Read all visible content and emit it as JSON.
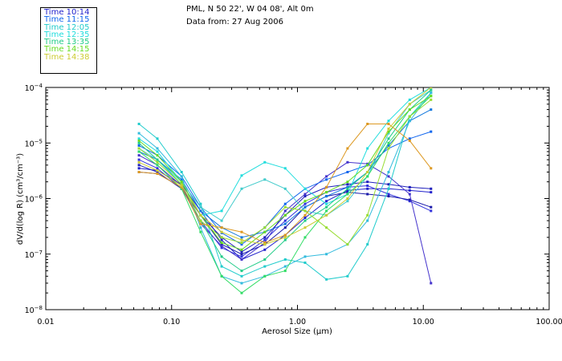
{
  "header": {
    "location": "PML, N 50 22', W 04 08', Alt 0m",
    "date_line": "Data from: 27 Aug 2006"
  },
  "chart_data": {
    "type": "line",
    "xlabel": "Aerosol Size (μm)",
    "ylabel": "dV/d(log R) (cm³/cm⁻³)",
    "x_scale": "log",
    "y_scale": "log",
    "xlim": [
      0.01,
      100
    ],
    "ylim": [
      1e-08,
      0.0001
    ],
    "x_ticks": [
      {
        "v": 0.01,
        "label": "0.01"
      },
      {
        "v": 0.1,
        "label": "0.10"
      },
      {
        "v": 1,
        "label": "1.00"
      },
      {
        "v": 10,
        "label": "10.00"
      },
      {
        "v": 100,
        "label": "100.00"
      }
    ],
    "y_ticks": [
      {
        "exp": -8,
        "mant": "10",
        "sup": "−8"
      },
      {
        "exp": -7,
        "mant": "10",
        "sup": "−7"
      },
      {
        "exp": -6,
        "mant": "10",
        "sup": "−6"
      },
      {
        "exp": -5,
        "mant": "10",
        "sup": "−5"
      },
      {
        "exp": -4,
        "mant": "10",
        "sup": "−4"
      }
    ],
    "x": [
      0.055,
      0.077,
      0.12,
      0.17,
      0.25,
      0.36,
      0.55,
      0.8,
      1.15,
      1.7,
      2.5,
      3.6,
      5.3,
      7.8,
      11.5
    ],
    "series": [
      {
        "name": "Time 10:14",
        "color": "#2222cc",
        "y": [
          3.5e-06,
          3.2e-06,
          1.8e-06,
          6e-07,
          1.8e-07,
          8e-08,
          1.2e-07,
          2.2e-07,
          4.5e-07,
          9e-07,
          1.4e-06,
          1.5e-06,
          1.5e-06,
          1.4e-06,
          1.3e-06
        ]
      },
      {
        "name": "Time 10:14",
        "color": "#3333dd",
        "y": [
          5e-06,
          3.5e-06,
          1.5e-06,
          4e-07,
          1.3e-07,
          9e-08,
          1.8e-07,
          4e-07,
          8e-07,
          1.3e-06,
          1.6e-06,
          1.7e-06,
          1.2e-06,
          9e-07,
          6e-07
        ]
      },
      {
        "name": "Time 10:14",
        "color": "#1a1aaa",
        "y": [
          3e-06,
          2.8e-06,
          1.6e-06,
          5e-07,
          1.5e-07,
          1e-07,
          1.5e-07,
          3e-07,
          7e-07,
          1.1e-06,
          1.3e-06,
          1.2e-06,
          1.1e-06,
          9.5e-07,
          7e-07
        ]
      },
      {
        "name": "Time 10:14",
        "color": "#4433cc",
        "y": [
          6e-06,
          4e-06,
          1.7e-06,
          3.5e-07,
          1.4e-07,
          8e-08,
          1.6e-07,
          6e-07,
          1.2e-06,
          2.5e-06,
          4.5e-06,
          4.2e-06,
          2.5e-06,
          1.2e-06,
          3e-08
        ]
      },
      {
        "name": "Time 10:14",
        "color": "#2020bb",
        "y": [
          4e-06,
          3e-06,
          1.5e-06,
          5e-07,
          2e-07,
          1.1e-07,
          2e-07,
          5e-07,
          1.1e-06,
          1.6e-06,
          1.8e-06,
          2e-06,
          1.8e-06,
          1.6e-06,
          1.5e-06
        ]
      },
      {
        "name": "Time 11:15",
        "color": "#1166ee",
        "y": [
          9e-06,
          6e-06,
          2.5e-06,
          7e-07,
          2.4e-07,
          1.5e-07,
          3e-07,
          8e-07,
          1.5e-06,
          2.2e-06,
          3e-06,
          4e-06,
          8e-06,
          1.2e-05,
          1.6e-05
        ]
      },
      {
        "name": "Time 11:15",
        "color": "#1177dd",
        "y": [
          7e-06,
          5e-06,
          2.2e-06,
          6e-07,
          3e-07,
          2e-07,
          2.5e-07,
          3.5e-07,
          7e-07,
          1.1e-06,
          1.6e-06,
          3e-06,
          9e-06,
          2.5e-05,
          4e-05
        ]
      },
      {
        "name": "Time 12:05",
        "color": "#22cccc",
        "y": [
          2.2e-05,
          1.2e-05,
          3e-06,
          8e-07,
          6e-08,
          4e-08,
          6e-08,
          8e-08,
          7e-08,
          3.5e-08,
          4e-08,
          1.5e-07,
          1.5e-06,
          3e-05,
          8e-05
        ]
      },
      {
        "name": "Time 12:05",
        "color": "#33bbdd",
        "y": [
          1.5e-05,
          8e-06,
          2.5e-06,
          3e-07,
          4e-08,
          3e-08,
          4e-08,
          6e-08,
          9e-08,
          1e-07,
          1.5e-07,
          4e-07,
          3e-06,
          2.5e-05,
          8e-05
        ]
      },
      {
        "name": "Time 12:35",
        "color": "#22dddd",
        "y": [
          1.2e-05,
          7e-06,
          2e-06,
          5e-07,
          6e-07,
          2.6e-06,
          4.5e-06,
          3.5e-06,
          1.5e-06,
          8e-07,
          1.2e-06,
          8e-06,
          2.5e-05,
          6e-05,
          0.0001
        ]
      },
      {
        "name": "Time 12:35",
        "color": "#44cccc",
        "y": [
          8e-06,
          5e-06,
          2e-06,
          7e-07,
          4e-07,
          1.5e-06,
          2.2e-06,
          1.5e-06,
          6e-07,
          5e-07,
          9e-07,
          2.5e-06,
          1.5e-05,
          5e-05,
          9e-05
        ]
      },
      {
        "name": "Time 13:35",
        "color": "#22cc88",
        "y": [
          1e-05,
          5e-06,
          1.8e-06,
          4e-07,
          9e-08,
          5e-08,
          8e-08,
          1.8e-07,
          4e-07,
          7e-07,
          1.5e-06,
          3e-06,
          1.2e-05,
          4e-05,
          9e-05
        ]
      },
      {
        "name": "Time 13:35",
        "color": "#33dd66",
        "y": [
          7e-06,
          4e-06,
          1.5e-06,
          2.5e-07,
          4e-08,
          2e-08,
          4e-08,
          5e-08,
          2e-07,
          6e-07,
          1.2e-06,
          2.5e-06,
          1e-05,
          3e-05,
          7e-05
        ]
      },
      {
        "name": "Time 14:15",
        "color": "#66dd22",
        "y": [
          1.1e-05,
          6e-06,
          2e-06,
          5e-07,
          1.6e-07,
          1.2e-07,
          2.5e-07,
          5e-07,
          9e-07,
          1.3e-06,
          2e-06,
          4e-06,
          1.6e-05,
          4e-05,
          7e-05
        ]
      },
      {
        "name": "Time 14:15",
        "color": "#99dd33",
        "y": [
          8e-06,
          4.5e-06,
          1.8e-06,
          4e-07,
          2e-07,
          1.6e-07,
          3e-07,
          7e-07,
          6e-07,
          3e-07,
          1.5e-07,
          5e-07,
          8e-06,
          3e-05,
          6e-05
        ]
      },
      {
        "name": "Time 14:38",
        "color": "#dd9922",
        "y": [
          3e-06,
          2.8e-06,
          1.6e-06,
          3.5e-07,
          3e-07,
          2.5e-07,
          1.6e-07,
          2.2e-07,
          5e-07,
          1.6e-06,
          8e-06,
          2.2e-05,
          2.2e-05,
          1.1e-05,
          3.5e-06
        ]
      },
      {
        "name": "Time 14:38",
        "color": "#cccc33",
        "y": [
          4.5e-06,
          3.2e-06,
          1.7e-06,
          5e-07,
          2.5e-07,
          1.8e-07,
          1.5e-07,
          2e-07,
          3e-07,
          5e-07,
          1e-06,
          3e-06,
          1.8e-05,
          5e-05,
          0.0001
        ]
      }
    ],
    "legend": [
      {
        "label": "Time 10:14",
        "color": "#2222cc"
      },
      {
        "label": "Time 11:15",
        "color": "#1166ee"
      },
      {
        "label": "Time 12:05",
        "color": "#22cccc"
      },
      {
        "label": "Time 12:35",
        "color": "#22dddd"
      },
      {
        "label": "Time 13:35",
        "color": "#22cc88"
      },
      {
        "label": "Time 14:15",
        "color": "#66dd22"
      },
      {
        "label": "Time 14:38",
        "color": "#cccc33"
      }
    ],
    "legend_position": "top-left",
    "grid": false
  }
}
